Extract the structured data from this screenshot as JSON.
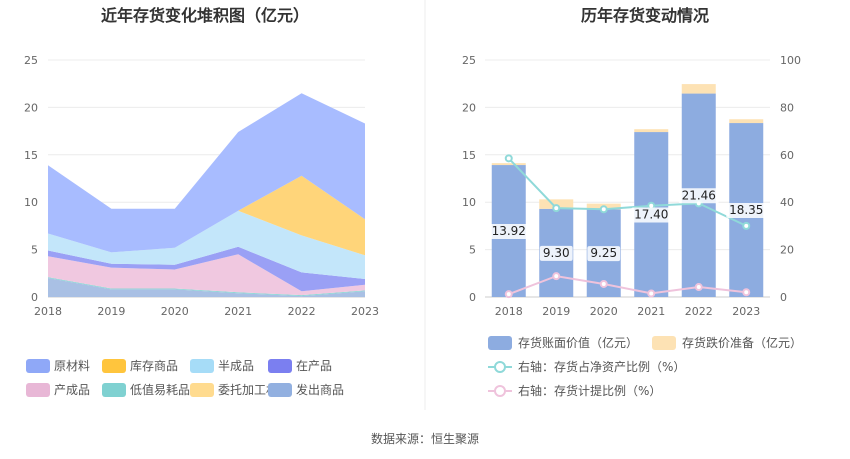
{
  "source_text": "数据来源：恒生聚源",
  "chart_data": [
    {
      "type": "area",
      "title": "近年存货变化堆积图（亿元）",
      "x": [
        "2018",
        "2019",
        "2020",
        "2021",
        "2022",
        "2023"
      ],
      "ylim": [
        0,
        25
      ],
      "yticks": [
        "0",
        "5",
        "10",
        "15",
        "20",
        "25"
      ],
      "stacked": true,
      "grid": true,
      "legend_position": "bottom",
      "series": [
        {
          "name": "发出商品",
          "color": "#a9c0e4",
          "values": [
            2.0,
            0.8,
            0.8,
            0.4,
            0.1,
            0.6
          ]
        },
        {
          "name": "低值易耗品",
          "color": "#8fd6d6",
          "values": [
            0.1,
            0.1,
            0.1,
            0.1,
            0.1,
            0.1
          ]
        },
        {
          "name": "产成品",
          "color": "#f0c8e0",
          "values": [
            2.2,
            2.2,
            2.0,
            4.0,
            0.4,
            0.6
          ]
        },
        {
          "name": "在产品",
          "color": "#9aa0f5",
          "values": [
            0.6,
            0.4,
            0.5,
            0.8,
            2.0,
            0.6
          ]
        },
        {
          "name": "委托加工材料",
          "color": "#ffe6b3",
          "values": [
            0.0,
            0.0,
            0.0,
            0.0,
            0.0,
            0.0
          ]
        },
        {
          "name": "半成品",
          "color": "#c3e6fa",
          "values": [
            1.8,
            1.2,
            1.8,
            3.8,
            3.9,
            2.5
          ]
        },
        {
          "name": "库存商品",
          "color": "#ffd57a",
          "values": [
            0.0,
            0.0,
            0.0,
            0.0,
            6.3,
            3.8
          ]
        },
        {
          "name": "原材料",
          "color": "#a8bcff",
          "values": [
            7.2,
            4.6,
            4.1,
            8.3,
            8.7,
            10.1
          ]
        }
      ],
      "legend_order": [
        "原材料",
        "库存商品",
        "半成品",
        "在产品",
        "产成品",
        "低值易耗品",
        "委托加工材料",
        "发出商品"
      ],
      "legend_colors": {
        "原材料": "#8fa8f7",
        "库存商品": "#ffc53d",
        "半成品": "#a6dcf7",
        "在产品": "#7b7ff0",
        "产成品": "#e8b7d6",
        "低值易耗品": "#7fd1d1",
        "委托加工材料": "#ffdb8f",
        "发出商品": "#92b0e0"
      }
    },
    {
      "type": "bar",
      "title": "历年存货变动情况",
      "categories": [
        "2018",
        "2019",
        "2020",
        "2021",
        "2022",
        "2023"
      ],
      "ylim": [
        0,
        25
      ],
      "yticks": [
        "0",
        "5",
        "10",
        "15",
        "20",
        "25"
      ],
      "y2lim": [
        0,
        100
      ],
      "y2ticks": [
        "0",
        "20",
        "40",
        "60",
        "80",
        "100"
      ],
      "grid": true,
      "legend_position": "bottom",
      "bars": [
        {
          "name": "存货账面价值（亿元）",
          "color": "#8dace0",
          "values": [
            13.92,
            9.3,
            9.25,
            17.4,
            21.46,
            18.35
          ],
          "labels": [
            "13.92",
            "9.30",
            "9.25",
            "17.40",
            "21.46",
            "18.35"
          ]
        },
        {
          "name": "存货跌价准备（亿元）",
          "color": "#fde2b4",
          "values": [
            0.2,
            1.0,
            0.6,
            0.3,
            1.0,
            0.4
          ]
        }
      ],
      "lines": [
        {
          "name": "右轴：存货占净资产比例（%）",
          "color": "#8fd9d9",
          "values": [
            58.5,
            37.5,
            37.0,
            38.5,
            39.5,
            30.0
          ]
        },
        {
          "name": "右轴：存货计提比例（%）",
          "color": "#efc3dc",
          "values": [
            1.2,
            8.8,
            5.5,
            1.5,
            4.2,
            2.0
          ]
        }
      ]
    }
  ]
}
